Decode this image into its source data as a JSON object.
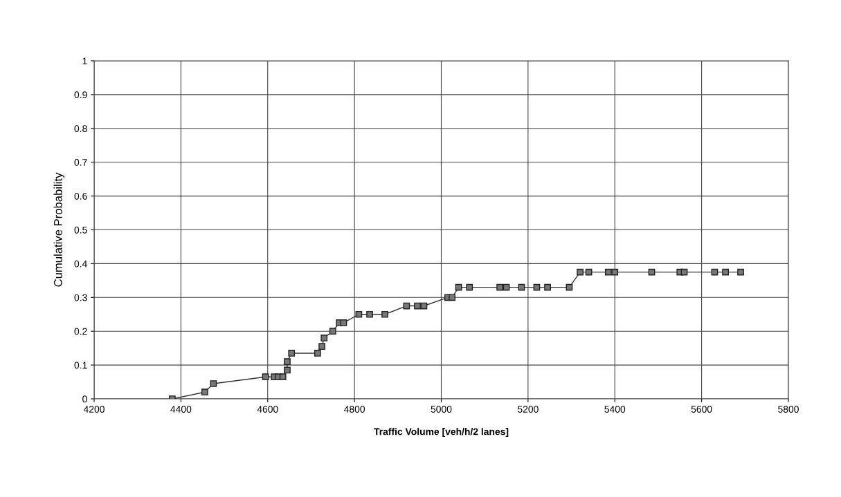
{
  "chart_data": {
    "type": "line",
    "xlabel": "Traffic Volume [veh/h/2 lanes]",
    "ylabel": "Cumulative Probability",
    "xlim": [
      4200,
      5800
    ],
    "xticks": [
      4200,
      4400,
      4600,
      4800,
      5000,
      5200,
      5400,
      5600,
      5800
    ],
    "ylim": [
      0,
      1
    ],
    "yticks": [
      0,
      0.1,
      0.2,
      0.3,
      0.4,
      0.5,
      0.6,
      0.7,
      0.8,
      0.9,
      1
    ],
    "grid": true,
    "marker": "square",
    "line_style": "solid",
    "series": [
      {
        "color": "#333333",
        "x": [
          4380,
          4455,
          4475,
          4595,
          4615,
          4625,
          4635,
          4645,
          4645,
          4655,
          4715,
          4725,
          4730,
          4750,
          4765,
          4775,
          4810,
          4835,
          4870,
          4920,
          4945,
          4960,
          5015,
          5025,
          5040,
          5065,
          5135,
          5150,
          5185,
          5220,
          5245,
          5295,
          5320,
          5340,
          5385,
          5400,
          5485,
          5550,
          5560,
          5630,
          5655,
          5690
        ],
        "values": [
          0,
          0.02,
          0.045,
          0.065,
          0.065,
          0.065,
          0.065,
          0.085,
          0.11,
          0.135,
          0.135,
          0.155,
          0.18,
          0.2,
          0.225,
          0.225,
          0.25,
          0.25,
          0.25,
          0.275,
          0.275,
          0.275,
          0.3,
          0.3,
          0.33,
          0.33,
          0.33,
          0.33,
          0.33,
          0.33,
          0.33,
          0.33,
          0.375,
          0.375,
          0.375,
          0.375,
          0.375,
          0.375,
          0.375,
          0.375,
          0.375,
          0.375
        ]
      }
    ]
  }
}
